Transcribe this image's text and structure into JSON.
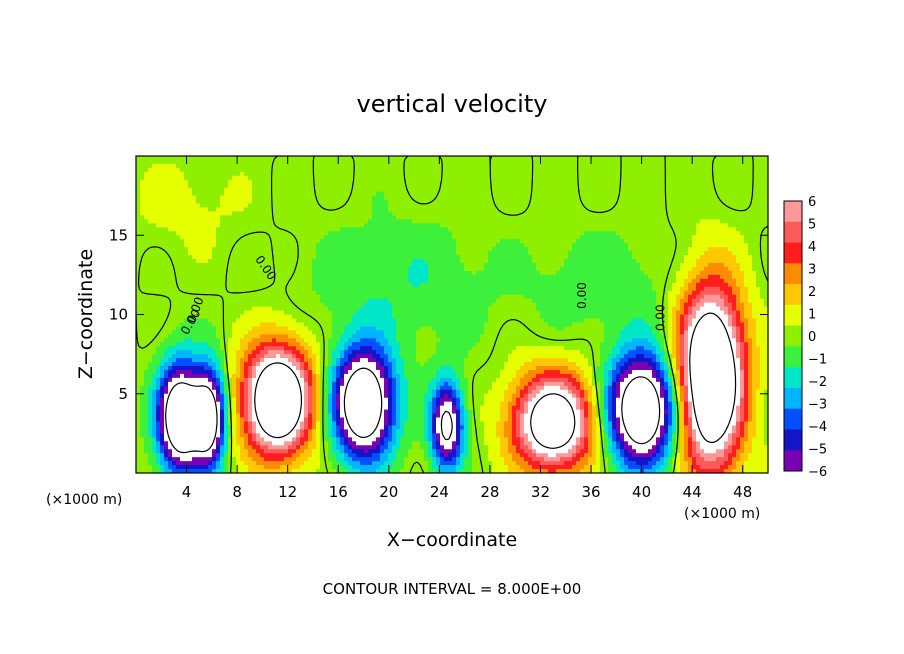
{
  "chart_data": {
    "type": "heatmap",
    "title": "vertical velocity",
    "xlabel": "X−coordinate",
    "ylabel": "Z−coordinate",
    "x_unit_left": "(×1000 m)",
    "x_unit_right": "(×1000 m)",
    "footer": "CONTOUR INTERVAL = 8.000E+00",
    "xlim": [
      0,
      50
    ],
    "ylim": [
      0,
      20
    ],
    "xticks": [
      4,
      8,
      12,
      16,
      20,
      24,
      28,
      32,
      36,
      40,
      44,
      48
    ],
    "yticks": [
      5,
      10,
      15
    ],
    "contour_labels": [
      "0.00",
      "0.00",
      "0.00",
      "0.00",
      "0.00"
    ],
    "colorbar": {
      "ticks": [
        "6",
        "5",
        "4",
        "3",
        "2",
        "1",
        "0",
        "−1",
        "−2",
        "−3",
        "−4",
        "−5",
        "−6"
      ],
      "colors": [
        "#ff9999",
        "#ff5a5a",
        "#ff1e1e",
        "#ff8c00",
        "#ffc800",
        "#e6ff00",
        "#8ef000",
        "#3cf03c",
        "#00e6c8",
        "#00b4ff",
        "#0050ff",
        "#1414c8",
        "#7a00b4"
      ]
    },
    "features": [
      {
        "x": 3.5,
        "z": 3.5,
        "peak": -12,
        "halfwidth": 2.2,
        "halfheight": 4.2
      },
      {
        "x": 5.8,
        "z": 3.5,
        "peak": -10,
        "halfwidth": 1.6,
        "halfheight": 3.8
      },
      {
        "x": 11.2,
        "z": 4.6,
        "peak": 13,
        "halfwidth": 3.4,
        "halfheight": 4.3
      },
      {
        "x": 18.0,
        "z": 4.4,
        "peak": -12,
        "halfwidth": 3.0,
        "halfheight": 4.3
      },
      {
        "x": 24.6,
        "z": 3.0,
        "peak": -9,
        "halfwidth": 1.6,
        "halfheight": 3.4
      },
      {
        "x": 33.0,
        "z": 3.2,
        "peak": 11,
        "halfwidth": 4.0,
        "halfheight": 3.8
      },
      {
        "x": 40.0,
        "z": 4.0,
        "peak": -12,
        "halfwidth": 3.4,
        "halfheight": 4.3
      },
      {
        "x": 45.5,
        "z": 6.0,
        "peak": 14,
        "halfwidth": 3.2,
        "halfheight": 7.0
      },
      {
        "x": 21.0,
        "z": 12.0,
        "peak": -1.4,
        "halfwidth": 9.0,
        "halfheight": 5.0
      },
      {
        "x": 37.0,
        "z": 12.0,
        "peak": -1.2,
        "halfwidth": 7.0,
        "halfheight": 4.0
      },
      {
        "x": 4.0,
        "z": 17.0,
        "peak": 0.8,
        "halfwidth": 6.0,
        "halfheight": 4.0
      }
    ]
  }
}
